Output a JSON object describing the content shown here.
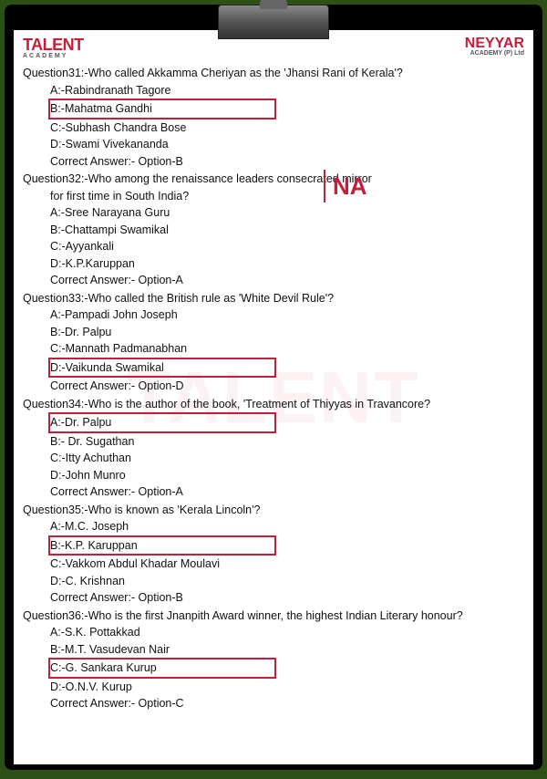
{
  "logos": {
    "left_main": "TALENT",
    "left_sub": "ACADEMY",
    "right_main": "NEYYAR",
    "right_sub": "ACADEMY (P) Ltd"
  },
  "na_label": "NA",
  "questions": [
    {
      "num": "Question31:-",
      "text": "Who called Akkamma Cheriyan as the 'Jhansi Rani of Kerala'?",
      "options": [
        {
          "label": "A:-Rabindranath Tagore",
          "highlighted": false
        },
        {
          "label": "B:-Mahatma Gandhi",
          "highlighted": true
        },
        {
          "label": "C:-Subhash Chandra Bose",
          "highlighted": false
        },
        {
          "label": "D:-Swami Vivekananda",
          "highlighted": false
        }
      ],
      "answer": "Correct Answer:- Option-B"
    },
    {
      "num": "Question32:-",
      "text": "Who among the renaissance leaders consecrated mirror",
      "cont": "for first time in South India?",
      "options": [
        {
          "label": "A:-Sree Narayana Guru",
          "highlighted": false
        },
        {
          "label": "B:-Chattampi Swamikal",
          "highlighted": false
        },
        {
          "label": "C:-Ayyankali",
          "highlighted": false
        },
        {
          "label": "D:-K.P.Karuppan",
          "highlighted": false
        }
      ],
      "answer": "Correct Answer:- Option-A"
    },
    {
      "num": "Question33:-",
      "text": "Who called the British rule as 'White Devil Rule'?",
      "options": [
        {
          "label": "A:-Pampadi John Joseph",
          "highlighted": false
        },
        {
          "label": "B:-Dr. Palpu",
          "highlighted": false
        },
        {
          "label": "C:-Mannath Padmanabhan",
          "highlighted": false
        },
        {
          "label": "D:-Vaikunda Swamikal",
          "highlighted": true
        }
      ],
      "answer": "Correct Answer:- Option-D"
    },
    {
      "num": "Question34:-",
      "text": "Who is the  author of the book, 'Treatment of Thiyyas in Travancore?",
      "options": [
        {
          "label": "A:-Dr. Palpu",
          "highlighted": true
        },
        {
          "label": "B:- Dr. Sugathan",
          "highlighted": false
        },
        {
          "label": "C:-Itty Achuthan",
          "highlighted": false
        },
        {
          "label": "D:-John Munro",
          "highlighted": false
        }
      ],
      "answer": "Correct Answer:- Option-A"
    },
    {
      "num": "Question35:-",
      "text": "Who is known as 'Kerala Lincoln'?",
      "options": [
        {
          "label": "A:-M.C. Joseph",
          "highlighted": false
        },
        {
          "label": "B:-K.P. Karuppan",
          "highlighted": true
        },
        {
          "label": "C:-Vakkom Abdul Khadar Moulavi",
          "highlighted": false
        },
        {
          "label": "D:-C. Krishnan",
          "highlighted": false
        }
      ],
      "answer": "Correct Answer:- Option-B"
    },
    {
      "num": "Question36:-",
      "text": "Who is the first Jnanpith Award winner, the highest Indian Literary honour?",
      "options": [
        {
          "label": "A:-S.K. Pottakkad",
          "highlighted": false
        },
        {
          "label": "B:-M.T. Vasudevan Nair",
          "highlighted": false
        },
        {
          "label": "C:-G. Sankara Kurup",
          "highlighted": true
        },
        {
          "label": "D:-O.N.V. Kurup",
          "highlighted": false
        }
      ],
      "answer": "Correct Answer:- Option-C"
    }
  ]
}
